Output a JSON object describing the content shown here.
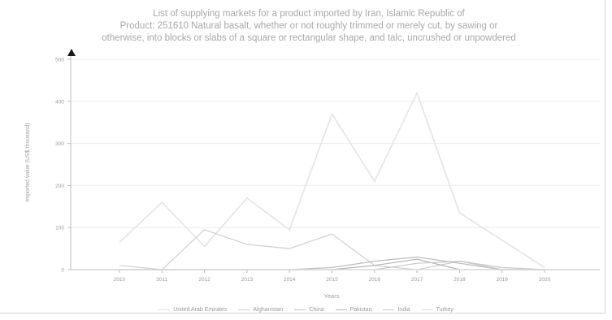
{
  "chart_data": {
    "type": "line",
    "title_lines": [
      "List of supplying markets for a product imported by Iran, Islamic Republic of",
      "Product: 251610 Natural basalt, whether or not roughly trimmed or merely cut, by sawing or",
      "otherwise, into blocks or slabs of a square or rectangular shape, and talc, uncrushed or unpowdered"
    ],
    "xlabel": "Years",
    "ylabel": "Imported value (US$ thousand)",
    "categories": [
      "2010",
      "2011",
      "2012",
      "2013",
      "2014",
      "2015",
      "2016",
      "2017",
      "2018",
      "2019",
      "2020"
    ],
    "y_ticks": [
      "0",
      "100",
      "200",
      "300",
      "400",
      "500"
    ],
    "ylim": [
      0,
      500
    ],
    "grid": true,
    "legend_position": "bottom",
    "series": [
      {
        "name": "United Arab Emirates",
        "color": "#e4e4e4",
        "values": [
          65,
          160,
          55,
          170,
          95,
          370,
          210,
          420,
          135,
          70,
          5
        ]
      },
      {
        "name": "Afghanistan",
        "color": "#cfcfcf",
        "values": [
          10,
          0,
          95,
          60,
          50,
          85,
          10,
          0,
          20,
          0,
          0
        ]
      },
      {
        "name": "China",
        "color": "#bcbcbc",
        "values": [
          0,
          0,
          0,
          0,
          0,
          5,
          20,
          30,
          15,
          0,
          0
        ]
      },
      {
        "name": "Pakistan",
        "color": "#b3b3b3",
        "values": [
          0,
          0,
          0,
          0,
          0,
          0,
          10,
          25,
          0,
          0,
          0
        ]
      },
      {
        "name": "India",
        "color": "#c6c6c6",
        "values": [
          0,
          0,
          0,
          0,
          0,
          0,
          0,
          15,
          20,
          5,
          0
        ]
      },
      {
        "name": "Turkey",
        "color": "#dadada",
        "values": [
          0,
          0,
          0,
          0,
          0,
          0,
          0,
          0,
          0,
          0,
          0
        ]
      }
    ]
  }
}
